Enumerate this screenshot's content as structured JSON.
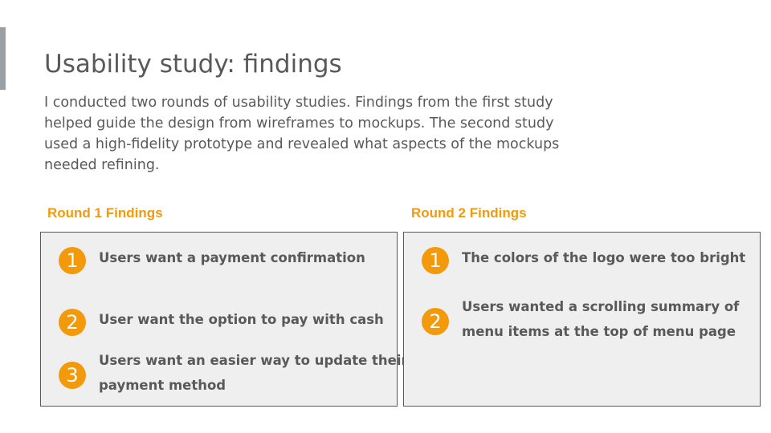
{
  "title": "Usability study: findings",
  "intro": "I conducted two rounds of usability studies. Findings from the first study helped guide the design from wireframes to mockups. The second study used a high-fidelity prototype and revealed what aspects of the mockups needed refining.",
  "accent_color": "#f29a0c",
  "rounds": [
    {
      "heading": "Round 1 Findings",
      "findings": [
        {
          "number": "1",
          "lines": [
            "Users want a payment confirmation"
          ]
        },
        {
          "number": "2",
          "lines": [
            "User want the option to pay with cash"
          ]
        },
        {
          "number": "3",
          "lines": [
            "Users want an easier way to update their",
            "payment method"
          ]
        }
      ]
    },
    {
      "heading": "Round 2 Findings",
      "findings": [
        {
          "number": "1",
          "lines": [
            "The colors of the logo were too bright"
          ]
        },
        {
          "number": "2",
          "lines": [
            "Users wanted a scrolling summary of",
            "menu items at the top of menu page"
          ]
        }
      ]
    }
  ]
}
